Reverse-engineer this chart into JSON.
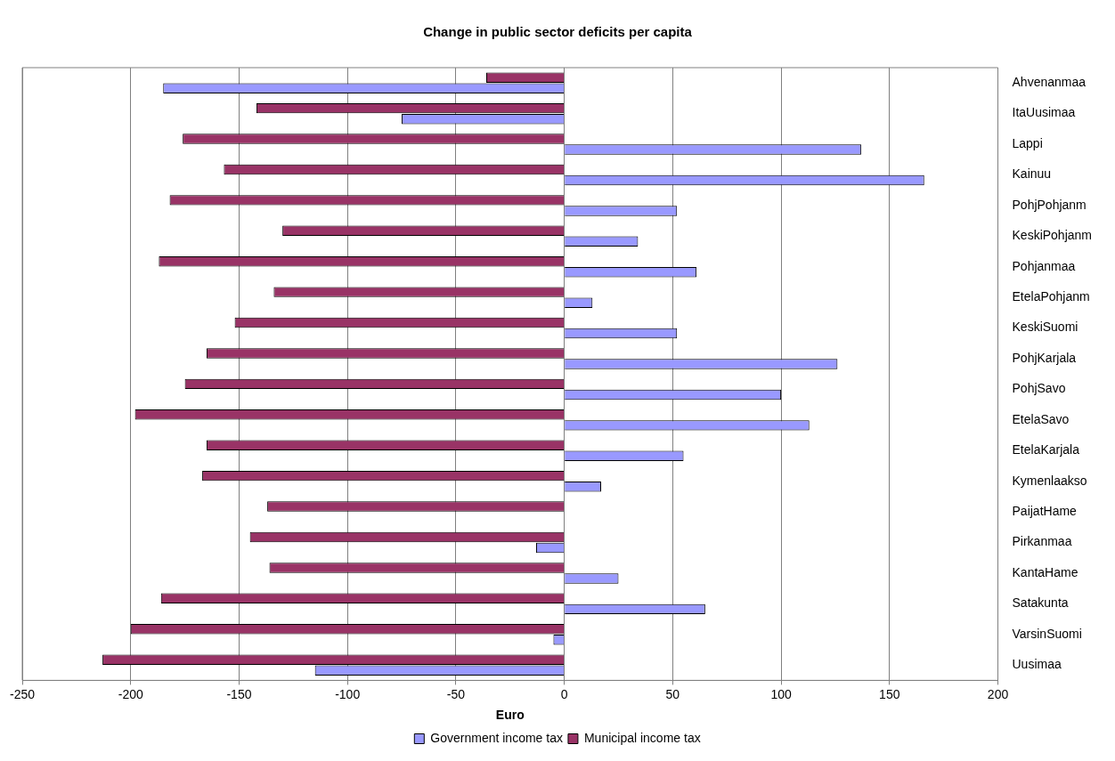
{
  "chart_data": {
    "type": "bar",
    "orientation": "horizontal",
    "title": "Change in public sector deficits per capita",
    "xlabel": "Euro",
    "categories": [
      "Ahvenanmaa",
      "ItaUusimaa",
      "Lappi",
      "Kainuu",
      "PohjPohjanm",
      "KeskiPohjanm",
      "Pohjanmaa",
      "EtelaPohjanm",
      "KeskiSuomi",
      "PohjKarjala",
      "PohjSavo",
      "EtelaSavo",
      "EtelaKarjala",
      "Kymenlaakso",
      "PaijatHame",
      "Pirkanmaa",
      "KantaHame",
      "Satakunta",
      "VarsinSuomi",
      "Uusimaa"
    ],
    "series": [
      {
        "name": "Government income tax",
        "color": "#9999ff",
        "values": [
          -185,
          -75,
          137,
          166,
          52,
          34,
          61,
          13,
          52,
          126,
          100,
          113,
          55,
          17,
          0,
          -13,
          25,
          65,
          -5,
          -115
        ]
      },
      {
        "name": "Municipal income tax",
        "color": "#993366",
        "values": [
          -36,
          -142,
          -176,
          -157,
          -182,
          -130,
          -187,
          -134,
          -152,
          -165,
          -175,
          -198,
          -165,
          -167,
          -137,
          -145,
          -136,
          -186,
          -200,
          -213
        ]
      }
    ],
    "xlim": [
      -250,
      200
    ],
    "xticks": [
      -250,
      -200,
      -150,
      -100,
      -50,
      0,
      50,
      100,
      150,
      200
    ],
    "grid": "x",
    "legend": "bottom"
  }
}
